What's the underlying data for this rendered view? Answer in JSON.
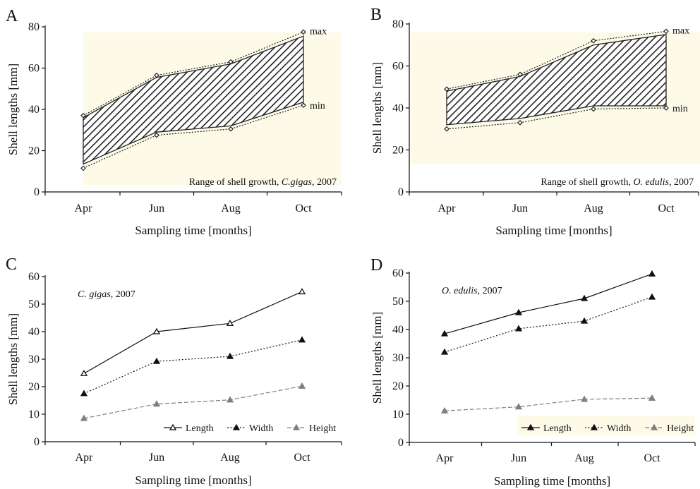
{
  "colors": {
    "background": "#ffffff",
    "highlight": "#fdfbe8",
    "axis": "#111111",
    "length": "#111111",
    "width": "#111111",
    "height": "#7f7f7f",
    "hatch": "#222222"
  },
  "chart_data": [
    {
      "type": "area",
      "panel": "A",
      "categories": [
        "Apr",
        "Jun",
        "Aug",
        "Oct"
      ],
      "series": [
        {
          "name": "max",
          "values": [
            37,
            56.5,
            63,
            77.5
          ]
        },
        {
          "name": "min",
          "values": [
            11.5,
            27.5,
            30.5,
            42
          ]
        }
      ],
      "band_upper": [
        36,
        55.5,
        62,
        75.5
      ],
      "band_lower": [
        13.5,
        29,
        32,
        43.5
      ],
      "annotation_prefix": "Range of shell growth, ",
      "annotation_species": "C.gigas",
      "annotation_suffix": ", 2007",
      "xlabel": "Sampling time [months]",
      "ylabel": "Shell lengths [mm]",
      "ylim": [
        0,
        80
      ],
      "yticks": [
        0,
        20,
        40,
        60,
        80
      ],
      "grid": false,
      "highlight": true,
      "legend": "inline-right"
    },
    {
      "type": "area",
      "panel": "B",
      "categories": [
        "Apr",
        "Jun",
        "Aug",
        "Oct"
      ],
      "series": [
        {
          "name": "max",
          "values": [
            49,
            56,
            72,
            76.5
          ]
        },
        {
          "name": "min",
          "values": [
            30,
            33,
            39.5,
            40
          ]
        }
      ],
      "band_upper": [
        48,
        55,
        70,
        75
      ],
      "band_lower": [
        32,
        35,
        41,
        41
      ],
      "annotation_prefix": "Range of shell growth, ",
      "annotation_species": "O. edulis",
      "annotation_suffix": ", 2007",
      "xlabel": "Sampling time [months]",
      "ylabel": "Shell lengths [mm]",
      "ylim": [
        0,
        80
      ],
      "yticks": [
        0,
        20,
        40,
        60,
        80
      ],
      "grid": false,
      "highlight": true,
      "legend": "inline-right"
    },
    {
      "type": "line",
      "panel": "C",
      "categories": [
        "Apr",
        "Jun",
        "Aug",
        "Oct"
      ],
      "series": [
        {
          "name": "Length",
          "values": [
            24.8,
            40,
            43,
            54.5
          ]
        },
        {
          "name": "Width",
          "values": [
            17.5,
            29.2,
            31,
            37
          ]
        },
        {
          "name": "Height",
          "values": [
            8.5,
            13.7,
            15.2,
            20.2
          ]
        }
      ],
      "annotation_species": "C. gigas",
      "annotation_suffix": ", 2007",
      "xlabel": "Sampling time [months]",
      "ylabel": "Shell lengths [mm]",
      "ylim": [
        0,
        60
      ],
      "yticks": [
        0,
        10,
        20,
        30,
        40,
        50,
        60
      ],
      "grid": false,
      "highlight": false,
      "legend": "bottom-right"
    },
    {
      "type": "line",
      "panel": "D",
      "categories": [
        "Apr",
        "Jun",
        "Aug",
        "Oct"
      ],
      "series": [
        {
          "name": "Length",
          "values": [
            38.5,
            46,
            51,
            59.7
          ]
        },
        {
          "name": "Width",
          "values": [
            32,
            40.3,
            43,
            51.5
          ]
        },
        {
          "name": "Height",
          "values": [
            11.2,
            12.6,
            15.3,
            15.7
          ]
        }
      ],
      "annotation_species": "O. edulis",
      "annotation_suffix": ", 2007",
      "xlabel": "Sampling time [months]",
      "ylabel": "Shell lengths [mm]",
      "ylim": [
        0,
        60
      ],
      "yticks": [
        0,
        10,
        20,
        30,
        40,
        50,
        60
      ],
      "grid": false,
      "highlight": true,
      "legend": "bottom-right"
    }
  ]
}
